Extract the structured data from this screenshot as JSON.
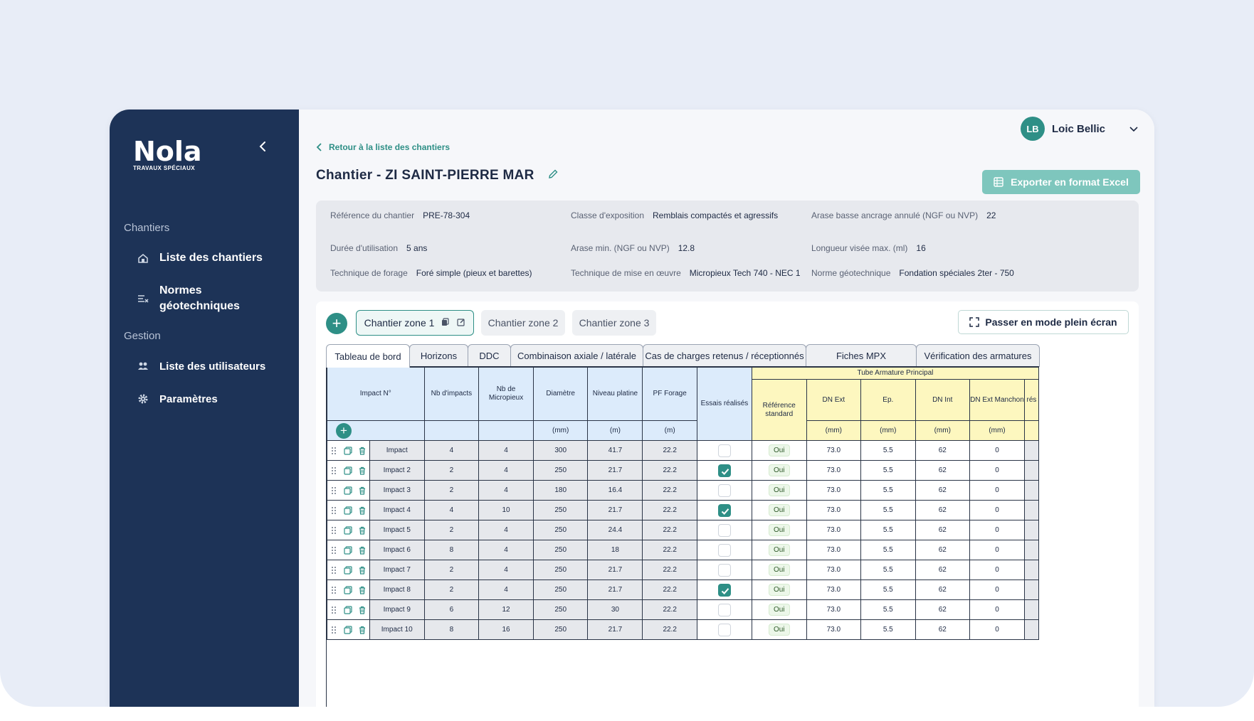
{
  "brand": {
    "name": "Nola",
    "subtitle": "TRAVAUX SPÉCIAUX"
  },
  "sidebar": {
    "sections": [
      {
        "title": "Chantiers",
        "items": [
          {
            "label": "Liste des chantiers",
            "icon": "site-icon"
          },
          {
            "label": "Normes géotechniques",
            "icon": "norms-icon"
          }
        ]
      },
      {
        "title": "Gestion",
        "items": [
          {
            "label": "Liste des utilisateurs",
            "icon": "users-icon"
          },
          {
            "label": "Paramètres",
            "icon": "gear-icon"
          }
        ]
      }
    ]
  },
  "user": {
    "initials": "LB",
    "name": "Loic Bellic"
  },
  "header": {
    "back_label": "Retour à la liste des chantiers",
    "title": "Chantier - ZI SAINT-PIERRE MAR",
    "export_label": "Exporter en format Excel"
  },
  "info": [
    {
      "label": "Référence du chantier",
      "value": "PRE-78-304"
    },
    {
      "label": "Classe d'exposition",
      "value": "Remblais compactés et agressifs"
    },
    {
      "label": "Arase basse ancrage annulé (NGF ou NVP)",
      "value": "22"
    },
    {
      "label": "Durée d'utilisation",
      "value": "5 ans"
    },
    {
      "label": "Arase min. (NGF ou NVP)",
      "value": "12.8"
    },
    {
      "label": "Longueur visée max. (ml)",
      "value": "16"
    },
    {
      "label": "Technique de forage",
      "value": "Foré simple (pieux et barettes)"
    },
    {
      "label": "Technique de mise en œuvre",
      "value": "Micropieux Tech 740 - NEC 1"
    },
    {
      "label": "Norme géotechnique",
      "value": "Fondation spéciales 2ter - 750"
    }
  ],
  "zones": [
    "Chantier zone 1",
    "Chantier zone 2",
    "Chantier zone 3"
  ],
  "fullscreen_label": "Passer en mode plein écran",
  "tabs": [
    "Tableau de bord",
    "Horizons",
    "DDC",
    "Combinaison axiale / latérale",
    "Cas de charges retenus / réceptionnés",
    "Fiches MPX",
    "Vérification des armatures"
  ],
  "table": {
    "group_header": "Tube Armature Principal",
    "headers": {
      "impact": "Impact N°",
      "nb_impacts": "Nb d'impacts",
      "nb_micropieux": "Nb de Micropieux",
      "diametre": "Diamètre",
      "niveau": "Niveau platine",
      "pf": "PF Forage",
      "essais": "Essais réalisés",
      "ref": "Référence standard",
      "dn_ext": "DN Ext",
      "ep": "Ep.",
      "dn_int": "DN Int",
      "dn_manchon": "DN Ext Manchon",
      "cut": "rés"
    },
    "units": {
      "diametre": "(mm)",
      "niveau": "(m)",
      "pf": "(m)",
      "dn_ext": "(mm)",
      "ep": "(mm)",
      "dn_int": "(mm)",
      "dn_manchon": "(mm)"
    },
    "rows": [
      {
        "name": "Impact",
        "nb_impacts": "4",
        "nb_mp": "4",
        "diam": "300",
        "niveau": "41.7",
        "pf": "22.2",
        "essai": false,
        "ref": "Oui",
        "dn_ext": "73.0",
        "ep": "5.5",
        "dn_int": "62",
        "manchon": "0"
      },
      {
        "name": "Impact 2",
        "nb_impacts": "2",
        "nb_mp": "4",
        "diam": "250",
        "niveau": "21.7",
        "pf": "22.2",
        "essai": true,
        "ref": "Oui",
        "dn_ext": "73.0",
        "ep": "5.5",
        "dn_int": "62",
        "manchon": "0"
      },
      {
        "name": "Impact 3",
        "nb_impacts": "2",
        "nb_mp": "4",
        "diam": "180",
        "niveau": "16.4",
        "pf": "22.2",
        "essai": false,
        "ref": "Oui",
        "dn_ext": "73.0",
        "ep": "5.5",
        "dn_int": "62",
        "manchon": "0"
      },
      {
        "name": "Impact 4",
        "nb_impacts": "4",
        "nb_mp": "10",
        "diam": "250",
        "niveau": "21.7",
        "pf": "22.2",
        "essai": true,
        "ref": "Oui",
        "dn_ext": "73.0",
        "ep": "5.5",
        "dn_int": "62",
        "manchon": "0"
      },
      {
        "name": "Impact 5",
        "nb_impacts": "2",
        "nb_mp": "4",
        "diam": "250",
        "niveau": "24.4",
        "pf": "22.2",
        "essai": false,
        "ref": "Oui",
        "dn_ext": "73.0",
        "ep": "5.5",
        "dn_int": "62",
        "manchon": "0"
      },
      {
        "name": "Impact 6",
        "nb_impacts": "8",
        "nb_mp": "4",
        "diam": "250",
        "niveau": "18",
        "pf": "22.2",
        "essai": false,
        "ref": "Oui",
        "dn_ext": "73.0",
        "ep": "5.5",
        "dn_int": "62",
        "manchon": "0"
      },
      {
        "name": "Impact 7",
        "nb_impacts": "2",
        "nb_mp": "4",
        "diam": "250",
        "niveau": "21.7",
        "pf": "22.2",
        "essai": false,
        "ref": "Oui",
        "dn_ext": "73.0",
        "ep": "5.5",
        "dn_int": "62",
        "manchon": "0"
      },
      {
        "name": "Impact 8",
        "nb_impacts": "2",
        "nb_mp": "4",
        "diam": "250",
        "niveau": "21.7",
        "pf": "22.2",
        "essai": true,
        "ref": "Oui",
        "dn_ext": "73.0",
        "ep": "5.5",
        "dn_int": "62",
        "manchon": "0"
      },
      {
        "name": "Impact 9",
        "nb_impacts": "6",
        "nb_mp": "12",
        "diam": "250",
        "niveau": "30",
        "pf": "22.2",
        "essai": false,
        "ref": "Oui",
        "dn_ext": "73.0",
        "ep": "5.5",
        "dn_int": "62",
        "manchon": "0"
      },
      {
        "name": "Impact 10",
        "nb_impacts": "8",
        "nb_mp": "16",
        "diam": "250",
        "niveau": "21.7",
        "pf": "22.2",
        "essai": false,
        "ref": "Oui",
        "dn_ext": "73.0",
        "ep": "5.5",
        "dn_int": "62",
        "manchon": "0"
      }
    ]
  },
  "colors": {
    "sidebar": "#1d3357",
    "accent": "#2e8f86",
    "header_blue": "#dcebfb",
    "header_yellow": "#fdf7bf"
  }
}
